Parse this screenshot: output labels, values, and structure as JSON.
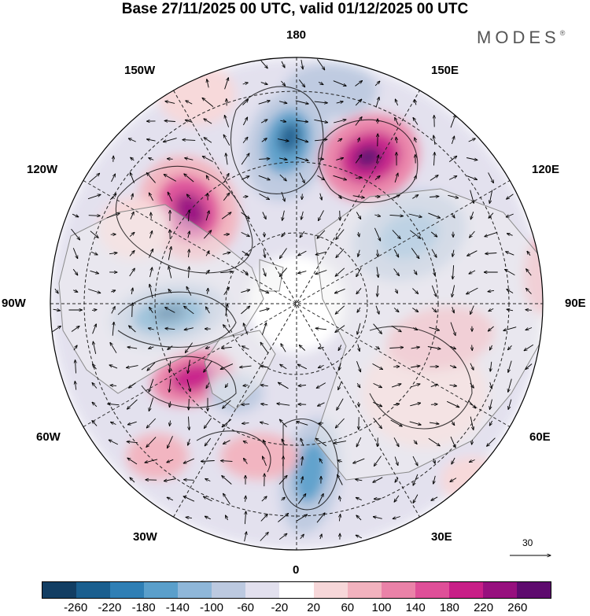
{
  "title": "Base 27/11/2025 00 UTC, valid 01/12/2025 00 UTC",
  "brand": {
    "name": "MODES",
    "mark": "®"
  },
  "longitude_labels": {
    "n180": "180",
    "w150": "150W",
    "e150": "150E",
    "w120": "120W",
    "e120": "120E",
    "w90": "90W",
    "e90": "90E",
    "w60": "60W",
    "e60": "60E",
    "w30": "30W",
    "e30": "30E",
    "s0": "0"
  },
  "reference_vector": {
    "label": "30"
  },
  "colorbar": {
    "colors": [
      "#123e63",
      "#1a5f8f",
      "#2f7fb5",
      "#5a9fcb",
      "#8fb7d9",
      "#bcc9e0",
      "#e2e0ee",
      "#ffffff",
      "#f7d7d9",
      "#f2b2be",
      "#ea82a8",
      "#df4f98",
      "#c81f87",
      "#97107e",
      "#5e0b6e"
    ],
    "ticks": [
      "-260",
      "-220",
      "-180",
      "-140",
      "-100",
      "-60",
      "-20",
      "20",
      "60",
      "100",
      "140",
      "180",
      "220",
      "260"
    ]
  },
  "map_style": {
    "land": "#efefef",
    "coast": "#8a8a8a",
    "grid": "#222222",
    "vector": "#000000"
  }
}
